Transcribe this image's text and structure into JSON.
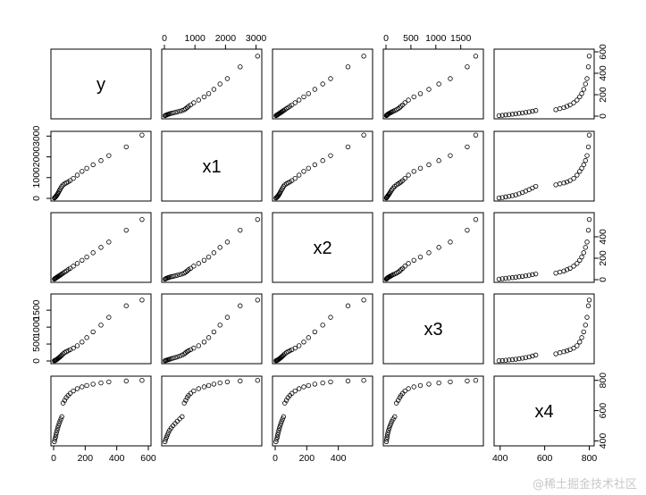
{
  "chart_data": {
    "type": "scatter-matrix",
    "variables": [
      "y",
      "x1",
      "x2",
      "x3",
      "x4"
    ],
    "ranges": {
      "y": [
        0,
        600
      ],
      "x1": [
        0,
        3100
      ],
      "x2": [
        0,
        600
      ],
      "x3": [
        0,
        1900
      ],
      "x4": [
        385,
        810
      ]
    },
    "ticks": {
      "y": [
        0,
        200,
        400,
        600
      ],
      "x1": [
        0,
        1000,
        2000,
        3000
      ],
      "x2": [
        0,
        200,
        400
      ],
      "x3": [
        0,
        500,
        1000,
        1500
      ],
      "x4": [
        400,
        600,
        800
      ]
    },
    "tick_labels": {
      "y": [
        "0",
        "200",
        "400",
        "600"
      ],
      "x1": [
        "0",
        "1000",
        "2000",
        "3000"
      ],
      "x2": [
        "0",
        "200",
        "400"
      ],
      "x3": [
        "0",
        "500",
        "1000",
        "1500"
      ],
      "x4": [
        "400",
        "600",
        "800"
      ]
    },
    "grid": false,
    "observations": [
      {
        "y": 5,
        "x1": 20,
        "x2": 5,
        "x3": 8,
        "x4": 395
      },
      {
        "y": 8,
        "x1": 40,
        "x2": 9,
        "x3": 14,
        "x4": 410
      },
      {
        "y": 12,
        "x1": 70,
        "x2": 13,
        "x3": 22,
        "x4": 425
      },
      {
        "y": 15,
        "x1": 100,
        "x2": 16,
        "x3": 30,
        "x4": 440
      },
      {
        "y": 18,
        "x1": 130,
        "x2": 19,
        "x3": 40,
        "x4": 455
      },
      {
        "y": 22,
        "x1": 170,
        "x2": 23,
        "x3": 52,
        "x4": 470
      },
      {
        "y": 26,
        "x1": 220,
        "x2": 27,
        "x3": 66,
        "x4": 485
      },
      {
        "y": 30,
        "x1": 280,
        "x2": 31,
        "x3": 82,
        "x4": 500
      },
      {
        "y": 35,
        "x1": 350,
        "x2": 36,
        "x3": 100,
        "x4": 515
      },
      {
        "y": 40,
        "x1": 420,
        "x2": 41,
        "x3": 120,
        "x4": 530
      },
      {
        "y": 46,
        "x1": 500,
        "x2": 47,
        "x3": 145,
        "x4": 545
      },
      {
        "y": 52,
        "x1": 580,
        "x2": 53,
        "x3": 175,
        "x4": 560
      },
      {
        "y": 60,
        "x1": 650,
        "x2": 61,
        "x3": 210,
        "x4": 650
      },
      {
        "y": 70,
        "x1": 700,
        "x2": 71,
        "x3": 245,
        "x4": 668
      },
      {
        "y": 80,
        "x1": 745,
        "x2": 81,
        "x3": 275,
        "x4": 686
      },
      {
        "y": 92,
        "x1": 790,
        "x2": 93,
        "x3": 300,
        "x4": 700
      },
      {
        "y": 105,
        "x1": 860,
        "x2": 106,
        "x3": 335,
        "x4": 714
      },
      {
        "y": 125,
        "x1": 960,
        "x2": 126,
        "x3": 380,
        "x4": 730
      },
      {
        "y": 150,
        "x1": 1120,
        "x2": 151,
        "x3": 450,
        "x4": 745
      },
      {
        "y": 180,
        "x1": 1300,
        "x2": 181,
        "x3": 560,
        "x4": 757
      },
      {
        "y": 210,
        "x1": 1450,
        "x2": 211,
        "x3": 690,
        "x4": 766
      },
      {
        "y": 250,
        "x1": 1620,
        "x2": 251,
        "x3": 860,
        "x4": 775
      },
      {
        "y": 300,
        "x1": 1820,
        "x2": 301,
        "x3": 1060,
        "x4": 783
      },
      {
        "y": 350,
        "x1": 2060,
        "x2": 351,
        "x3": 1290,
        "x4": 790
      },
      {
        "y": 460,
        "x1": 2480,
        "x2": 461,
        "x3": 1630,
        "x4": 796
      },
      {
        "y": 560,
        "x1": 3050,
        "x2": 561,
        "x3": 1800,
        "x4": 800
      }
    ]
  },
  "watermark": "@稀土掘金技术社区"
}
